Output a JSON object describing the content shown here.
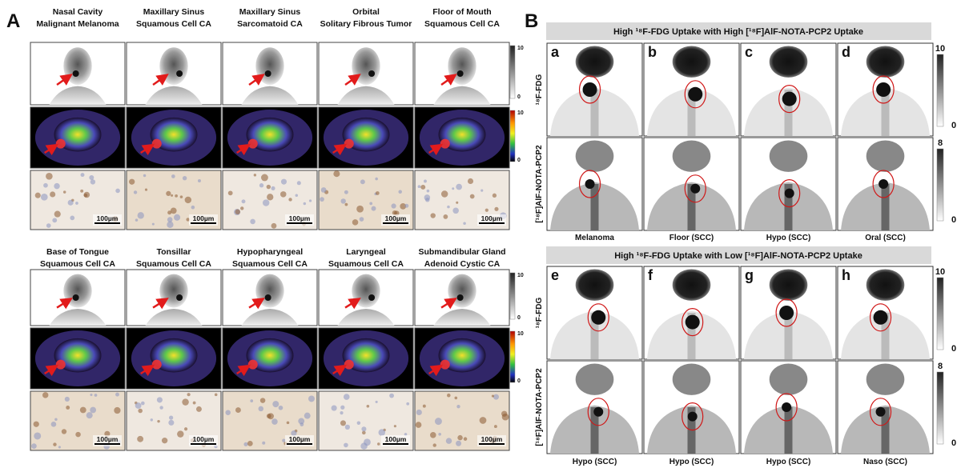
{
  "panel_a": {
    "label": "A",
    "groups": [
      {
        "titles": [
          [
            "Nasal Cavity",
            "Malignant Melanoma"
          ],
          [
            "Maxillary Sinus",
            "Squamous Cell CA"
          ],
          [
            "Maxillary Sinus",
            "Sarcomatoid CA"
          ],
          [
            "Orbital",
            "Solitary Fibrous Tumor"
          ],
          [
            "Floor of Mouth",
            "Squamous Cell CA"
          ]
        ],
        "scale_bars": [
          "100µm",
          "100µm",
          "100µm",
          "100µm",
          "100µm"
        ],
        "pet_scale": [
          "10",
          "0"
        ],
        "fused_scale": [
          "10",
          "0"
        ]
      },
      {
        "titles": [
          [
            "Base of Tongue",
            "Squamous Cell CA"
          ],
          [
            "Tonsillar",
            "Squamous Cell CA"
          ],
          [
            "Hypopharyngeal",
            "Squamous Cell CA"
          ],
          [
            "Laryngeal",
            "Squamous Cell CA"
          ],
          [
            "Submandibular Gland",
            "Adenoid Cystic CA"
          ]
        ],
        "scale_bars": [
          "100µm",
          "100µm",
          "100µm",
          "100µm",
          "100µm"
        ],
        "pet_scale": [
          "10",
          "0"
        ],
        "fused_scale": [
          "10",
          "0"
        ]
      }
    ]
  },
  "panel_b": {
    "label": "B",
    "sections": [
      {
        "header": "High ¹⁸F-FDG Uptake with High [¹⁸F]AlF-NOTA-PCP2 Uptake",
        "letters": [
          "a",
          "b",
          "c",
          "d"
        ],
        "row_labels": [
          "¹⁸F-FDG",
          "[¹⁸F]AlF-NOTA-PCP2"
        ],
        "cases": [
          "Melanoma",
          "Floor (SCC)",
          "Hypo (SCC)",
          "Oral (SCC)"
        ],
        "fdg_scale": [
          "10",
          "0"
        ],
        "pcp2_scale": [
          "8",
          "0"
        ]
      },
      {
        "header": "High ¹⁸F-FDG Uptake with Low [¹⁸F]AlF-NOTA-PCP2 Uptake",
        "letters": [
          "e",
          "f",
          "g",
          "h"
        ],
        "row_labels": [
          "¹⁸F-FDG",
          "[¹⁸F]AlF-NOTA-PCP2"
        ],
        "cases": [
          "Hypo (SCC)",
          "Hypo (SCC)",
          "Hypo (SCC)",
          "Naso (SCC)"
        ],
        "fdg_scale": [
          "10",
          "0"
        ],
        "pcp2_scale": [
          "8",
          "0"
        ]
      }
    ]
  }
}
